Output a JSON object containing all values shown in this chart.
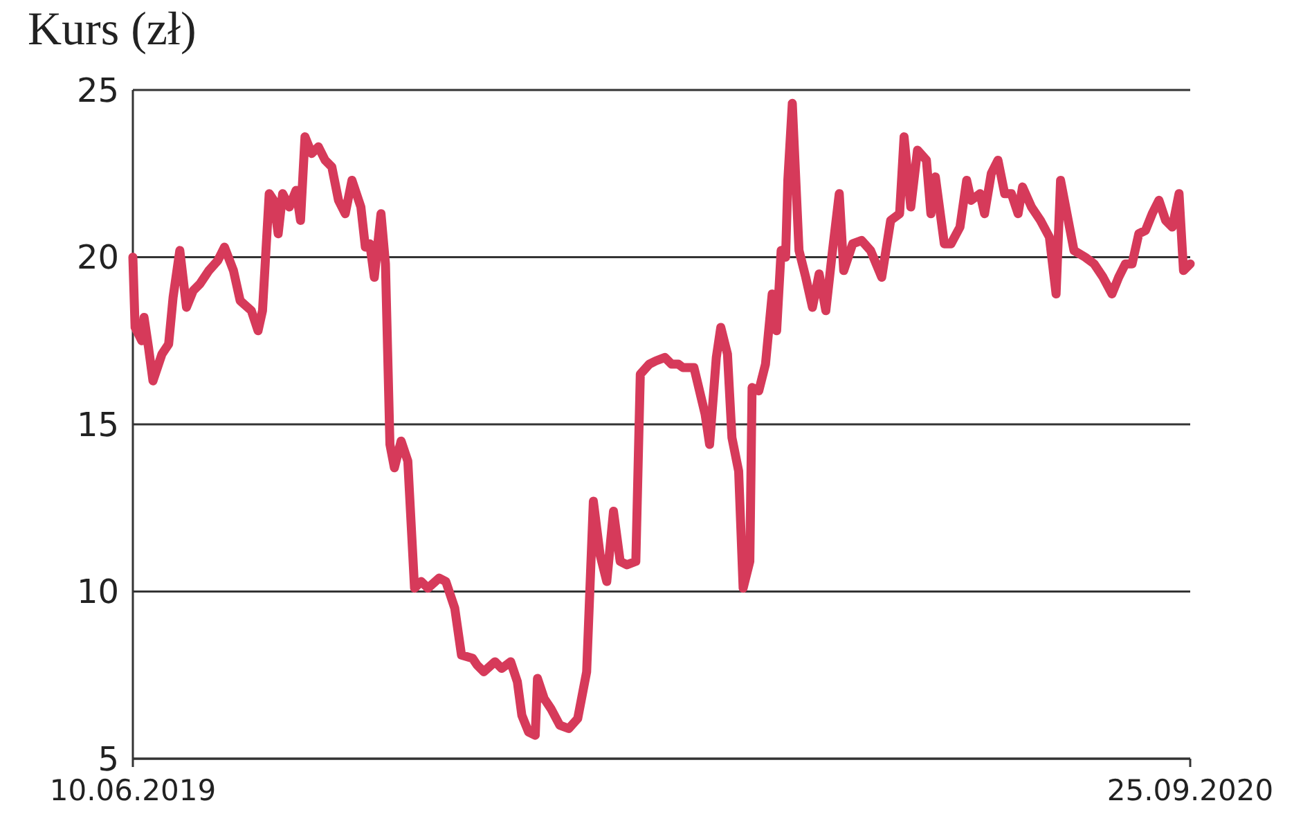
{
  "chart_data": {
    "type": "line",
    "title": "Kurs (zł)",
    "x": [
      "2019-06-10",
      "2019-06-11",
      "2019-06-14",
      "2019-06-15",
      "2019-06-17",
      "2019-06-19",
      "2019-06-21",
      "2019-06-23",
      "2019-06-26",
      "2019-06-28",
      "2019-07-01",
      "2019-07-04",
      "2019-07-07",
      "2019-07-10",
      "2019-07-14",
      "2019-07-18",
      "2019-07-21",
      "2019-07-25",
      "2019-07-28",
      "2019-08-02",
      "2019-08-05",
      "2019-08-07",
      "2019-08-10",
      "2019-08-12",
      "2019-08-14",
      "2019-08-16",
      "2019-08-19",
      "2019-08-22",
      "2019-08-24",
      "2019-08-26",
      "2019-08-29",
      "2019-09-01",
      "2019-09-04",
      "2019-09-07",
      "2019-09-10",
      "2019-09-13",
      "2019-09-16",
      "2019-09-20",
      "2019-09-22",
      "2019-09-24",
      "2019-09-26",
      "2019-09-29",
      "2019-10-01",
      "2019-10-03",
      "2019-10-05",
      "2019-10-08",
      "2019-10-11",
      "2019-10-14",
      "2019-10-17",
      "2019-10-20",
      "2019-10-25",
      "2019-10-28",
      "2019-11-01",
      "2019-11-04",
      "2019-11-09",
      "2019-11-11",
      "2019-11-14",
      "2019-11-19",
      "2019-11-22",
      "2019-11-26",
      "2019-11-29",
      "2019-12-01",
      "2019-12-04",
      "2019-12-07",
      "2019-12-08",
      "2019-12-11",
      "2019-12-14",
      "2019-12-18",
      "2019-12-22",
      "2019-12-26",
      "2019-12-30",
      "2020-01-02",
      "2020-01-05",
      "2020-01-08",
      "2020-01-11",
      "2020-01-14",
      "2020-01-17",
      "2020-01-21",
      "2020-01-23",
      "2020-01-27",
      "2020-01-30",
      "2020-02-03",
      "2020-02-06",
      "2020-02-09",
      "2020-02-11",
      "2020-02-16",
      "2020-02-21",
      "2020-02-23",
      "2020-02-26",
      "2020-02-28",
      "2020-03-02",
      "2020-03-04",
      "2020-03-07",
      "2020-03-09",
      "2020-03-12",
      "2020-03-13",
      "2020-03-16",
      "2020-03-19",
      "2020-03-22",
      "2020-03-24",
      "2020-03-26",
      "2020-03-28",
      "2020-03-29",
      "2020-03-31",
      "2020-04-03",
      "2020-04-06",
      "2020-04-09",
      "2020-04-12",
      "2020-04-15",
      "2020-04-18",
      "2020-04-21",
      "2020-04-23",
      "2020-04-27",
      "2020-05-01",
      "2020-05-05",
      "2020-05-10",
      "2020-05-14",
      "2020-05-18",
      "2020-05-20",
      "2020-05-23",
      "2020-05-26",
      "2020-05-30",
      "2020-06-01",
      "2020-06-03",
      "2020-06-07",
      "2020-06-10",
      "2020-06-14",
      "2020-06-17",
      "2020-06-19",
      "2020-06-23",
      "2020-06-25",
      "2020-06-28",
      "2020-07-01",
      "2020-07-04",
      "2020-07-07",
      "2020-07-10",
      "2020-07-12",
      "2020-07-16",
      "2020-07-20",
      "2020-07-24",
      "2020-07-27",
      "2020-07-29",
      "2020-08-02",
      "2020-08-04",
      "2020-08-09",
      "2020-08-13",
      "2020-08-17",
      "2020-08-21",
      "2020-08-24",
      "2020-08-27",
      "2020-08-30",
      "2020-09-02",
      "2020-09-05",
      "2020-09-08",
      "2020-09-11",
      "2020-09-14",
      "2020-09-17",
      "2020-09-20",
      "2020-09-22",
      "2020-09-25"
    ],
    "series": [
      {
        "color": "#d63a5a",
        "values": [
          20.0,
          17.9,
          17.5,
          18.2,
          17.3,
          16.3,
          16.7,
          17.1,
          17.4,
          18.8,
          20.2,
          18.5,
          19.0,
          19.2,
          19.6,
          19.9,
          20.3,
          19.6,
          18.7,
          18.4,
          17.8,
          18.4,
          21.9,
          21.7,
          20.7,
          21.9,
          21.5,
          22.0,
          21.1,
          23.6,
          23.1,
          23.3,
          22.9,
          22.7,
          21.7,
          21.3,
          22.3,
          21.5,
          20.3,
          20.4,
          19.4,
          21.3,
          19.8,
          14.4,
          13.7,
          14.5,
          13.9,
          10.1,
          10.3,
          10.1,
          10.4,
          10.3,
          9.5,
          8.1,
          8.0,
          7.8,
          7.6,
          7.9,
          7.7,
          7.9,
          7.3,
          6.3,
          5.8,
          5.7,
          7.4,
          6.8,
          6.5,
          6.0,
          5.9,
          6.2,
          7.6,
          12.7,
          11.1,
          10.3,
          12.4,
          10.9,
          10.8,
          10.9,
          16.5,
          16.8,
          16.9,
          17.0,
          16.8,
          16.8,
          16.7,
          16.7,
          15.3,
          14.4,
          17.0,
          17.9,
          17.1,
          14.6,
          13.6,
          10.1,
          10.9,
          16.1,
          16.0,
          16.8,
          18.9,
          17.8,
          20.2,
          20.0,
          22.3,
          24.6,
          20.2,
          19.4,
          18.5,
          19.5,
          18.4,
          20.2,
          21.9,
          19.6,
          20.4,
          20.5,
          20.2,
          19.4,
          21.1,
          21.3,
          23.6,
          21.5,
          23.2,
          22.9,
          21.3,
          22.4,
          20.4,
          20.4,
          20.9,
          22.3,
          21.7,
          21.9,
          21.3,
          22.5,
          22.9,
          21.9,
          21.9,
          21.3,
          22.1,
          21.5,
          21.1,
          20.6,
          18.9,
          22.3,
          20.9,
          20.2,
          20.0,
          19.8,
          19.4,
          18.9,
          19.4,
          19.8,
          19.8,
          20.7,
          20.8,
          21.3,
          21.7,
          21.1,
          20.9,
          21.9,
          19.6,
          19.8
        ]
      }
    ],
    "xlim": [
      "2019-06-10",
      "2020-09-25"
    ],
    "xticks": [
      {
        "value": "2019-06-10",
        "label": "10.06.2019"
      },
      {
        "value": "2020-09-25",
        "label": "25.09.2020"
      }
    ],
    "ylim": [
      5,
      25
    ],
    "yticks": [
      5,
      10,
      15,
      20,
      25
    ],
    "grid": "y",
    "line_style": "solid"
  }
}
